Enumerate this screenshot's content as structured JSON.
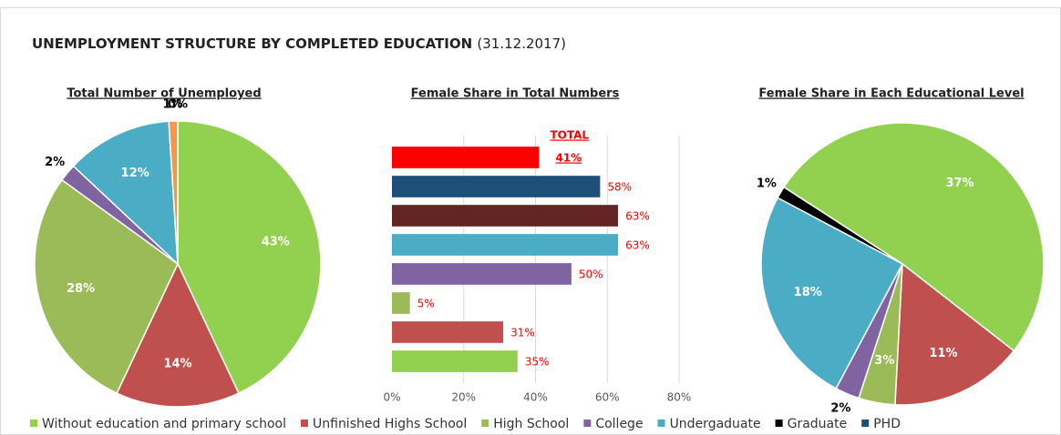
{
  "title": "UNEMPLOYMENT STRUCTURE BY COMPLETED EDUCATION",
  "subtitle": "(31.12.2017)",
  "legend": [
    {
      "name": "Without education and primary school",
      "color": "#92d050"
    },
    {
      "name": "Unfinished Highs School",
      "color": "#c0504d"
    },
    {
      "name": "High School",
      "color": "#9bbb59"
    },
    {
      "name": "College",
      "color": "#8064a2"
    },
    {
      "name": "Undergaduate",
      "color": "#4bacc6"
    },
    {
      "name": "Graduate",
      "color": "#000000"
    },
    {
      "name": "PHD",
      "color": "#1f4e79"
    }
  ],
  "chart_data": [
    {
      "type": "pie",
      "title": "Total Number of Unemployed",
      "values": [
        43,
        14,
        28,
        2,
        12,
        1,
        0
      ],
      "value_labels": [
        "43%",
        "14%",
        "28%",
        "2%",
        "12%",
        "1%",
        "0%"
      ],
      "colors": [
        "#92d050",
        "#c0504d",
        "#9bbb59",
        "#8064a2",
        "#4bacc6",
        "#f79646",
        "#1f4e79"
      ]
    },
    {
      "type": "bar",
      "orientation": "horizontal",
      "title": "Female Share in Total Numbers",
      "categories": [
        "TOTAL",
        null,
        null,
        null,
        null,
        null,
        null,
        null
      ],
      "values": [
        41,
        58,
        63,
        63,
        50,
        5,
        31,
        35
      ],
      "value_labels": [
        "41%",
        "58%",
        "63%",
        "63%",
        "50%",
        "5%",
        "31%",
        "35%"
      ],
      "colors": [
        "#ff0000",
        "#1f4e79",
        "#632523",
        "#4bacc6",
        "#8064a2",
        "#9bbb59",
        "#c0504d",
        "#92d050"
      ],
      "xlim": [
        0,
        80
      ],
      "xticks": [
        {
          "value": 0,
          "label": "0%"
        },
        {
          "value": 20,
          "label": "20%"
        },
        {
          "value": 40,
          "label": "40%"
        },
        {
          "value": 60,
          "label": "60%"
        },
        {
          "value": 80,
          "label": "80%"
        }
      ],
      "grid": true
    },
    {
      "type": "pie",
      "title": "Female Share in Each Educational  Level",
      "values": [
        37,
        11,
        3,
        2,
        18,
        1
      ],
      "value_labels": [
        "37%",
        "11%",
        "3%",
        "2%",
        "18%",
        "1%"
      ],
      "colors": [
        "#92d050",
        "#c0504d",
        "#9bbb59",
        "#8064a2",
        "#4bacc6",
        "#000000"
      ]
    }
  ]
}
